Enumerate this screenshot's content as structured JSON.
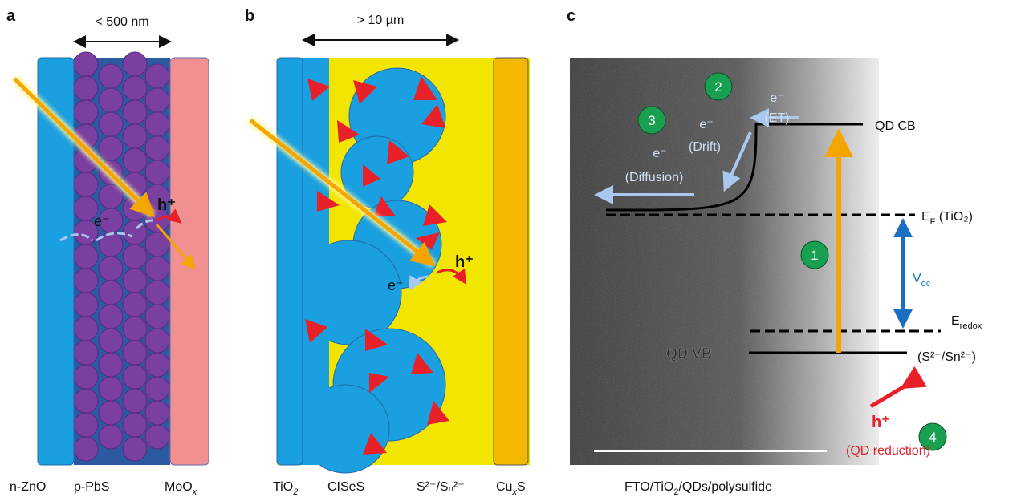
{
  "panel_a": {
    "label": "a",
    "dimension": "< 500 nm",
    "electron": "e⁻",
    "hole": "h⁺",
    "layers": [
      {
        "base": "n-ZnO",
        "sub": ""
      },
      {
        "base": "p-PbS",
        "sub": ""
      },
      {
        "base": "MoO",
        "sub": "x"
      }
    ]
  },
  "panel_b": {
    "label": "b",
    "dimension": "> 10 µm",
    "electron": "e⁻",
    "hole": "h⁺",
    "layers": [
      {
        "base": "TiO",
        "sub": "2"
      },
      {
        "base": "CISeS",
        "sub": ""
      },
      {
        "base": "S²⁻/Sₙ²⁻",
        "sub": ""
      },
      {
        "base": "Cu",
        "sub": "x",
        "tail": "S"
      }
    ]
  },
  "panel_c": {
    "label": "c",
    "steps": [
      "2",
      "3",
      "1",
      "4"
    ],
    "et": {
      "e": "e⁻",
      "text": "(ET)"
    },
    "drift": {
      "e": "e⁻",
      "text": "(Drift)"
    },
    "diffusion": {
      "e": "e⁻",
      "text": "(Diffusion)"
    },
    "qd_cb": "QD CB",
    "ef": {
      "base": "E",
      "sub": "F",
      "tail": " (TiO₂)"
    },
    "voc": {
      "base": "V",
      "sub": "oc"
    },
    "eredox": {
      "base": "E",
      "sub": "redox"
    },
    "qd_vb": "QD VB",
    "couple": "(S²⁻/Sn²⁻)",
    "hole": "h⁺",
    "reduction": "(QD reduction)",
    "caption": {
      "parts": [
        "FTO/TiO",
        "2",
        "/QDs/polysulfide"
      ]
    }
  }
}
